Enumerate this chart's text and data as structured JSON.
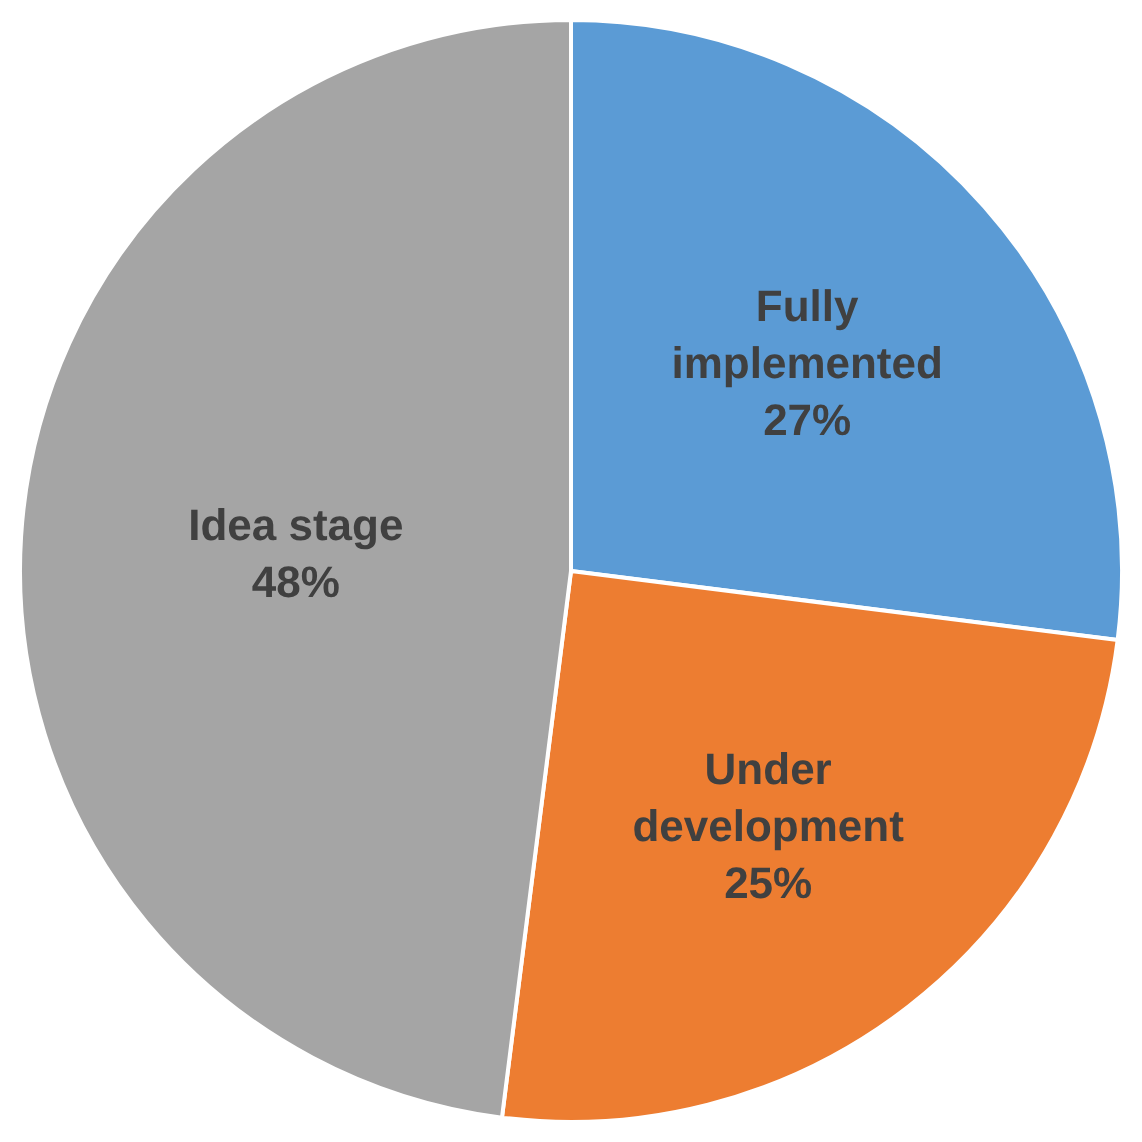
{
  "chart_data": {
    "type": "pie",
    "categories": [
      "Fully implemented",
      "Under development",
      "Idea stage"
    ],
    "values": [
      27,
      25,
      48
    ],
    "colors": [
      "#5b9bd5",
      "#ed7d31",
      "#a5a5a5"
    ],
    "value_labels": [
      "27%",
      "25%",
      "48%"
    ],
    "legend": false
  }
}
